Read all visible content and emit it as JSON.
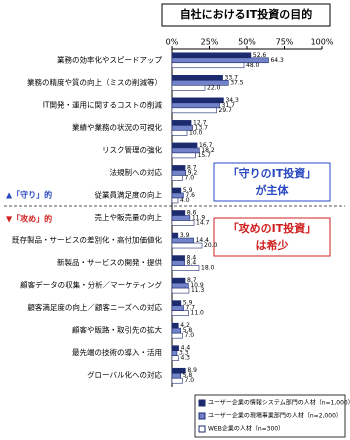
{
  "chart_data": {
    "type": "hbar",
    "title": "自社におけるIT投資の目的",
    "categories": [
      "業務の効率化やスピードアップ",
      "業務の精度や質の向上（ミスの削減等）",
      "IT開発・運用に関するコストの削減",
      "業績や業務の状況の可視化",
      "リスク管理の強化",
      "法規制への対応",
      "従業員満足度の向上",
      "売上や販売量の向上",
      "既存製品・サービスの差別化・高付加価値化",
      "新製品・サービスの開発・提供",
      "顧客データの収集・分析／マーケティング",
      "顧客満足度の向上／顧客ニーズへの対応",
      "顧客や販路・取引先の拡大",
      "最先端の技術の導入・活用",
      "グローバル化への対応"
    ],
    "series": [
      {
        "name": "ユーザー企業の情報システム部門の人材（n=1,000）",
        "color": "#1c2a6e",
        "values": [
          52.6,
          33.7,
          34.3,
          12.7,
          16.7,
          8.7,
          5.9,
          8.6,
          3.9,
          8.4,
          8.7,
          5.9,
          4.2,
          4.4,
          8.9
        ],
        "value_labels": [
          "52.6",
          "33.7",
          "34.3",
          "12.7",
          "16.7",
          "8.7",
          "5.9",
          "8.6",
          "3.9",
          "8.4",
          "8.7",
          "5.9",
          "4.2",
          "4.4",
          "8.9"
        ]
      },
      {
        "name": "ユーザー企業の現場事業部門の人材（n=2,000）",
        "color": "#7283c9",
        "values": [
          64.3,
          37.5,
          31.7,
          13.7,
          18.2,
          9.2,
          7.6,
          11.9,
          14.4,
          8.4,
          10.9,
          7.7,
          5.8,
          3.3,
          5.8
        ],
        "value_labels": [
          "64.3",
          "37.5",
          "31.7",
          "13.7",
          "18.2",
          "9.2",
          "7.6",
          "11.9",
          "14.4",
          "8.4",
          "10.9",
          "7.7",
          "5.8",
          "3.3",
          "5.8"
        ]
      },
      {
        "name": "WEB企業の人材（n=300）",
        "color": "#ffffff",
        "values": [
          48.0,
          22.0,
          29.7,
          10.0,
          15.7,
          7.0,
          4.0,
          14.7,
          20.0,
          18.0,
          11.3,
          11.0,
          7.0,
          4.3,
          7.0
        ],
        "value_labels": [
          "48.0",
          "22.0",
          "29.7",
          "10.0",
          "15.7",
          "7.0",
          "4.0",
          "14.7",
          "20.0",
          "18.0",
          "11.3",
          "11.0",
          "7.0",
          "4.3",
          "7.0"
        ]
      }
    ],
    "xlim": [
      0,
      100
    ],
    "xticks": [
      {
        "value": 0,
        "label": "0%"
      },
      {
        "value": 25,
        "label": "25%"
      },
      {
        "value": 50,
        "label": "50%"
      },
      {
        "value": 75,
        "label": "75%"
      },
      {
        "value": 100,
        "label": "100%"
      }
    ],
    "grid": false,
    "annotations": {
      "defense_label": "▲「守り」的",
      "offense_label": "▼「攻め」的",
      "defense_box": [
        "「守りのIT投資」",
        "が主体"
      ],
      "offense_box": [
        "「攻めのIT投資」",
        "は希少"
      ]
    }
  }
}
